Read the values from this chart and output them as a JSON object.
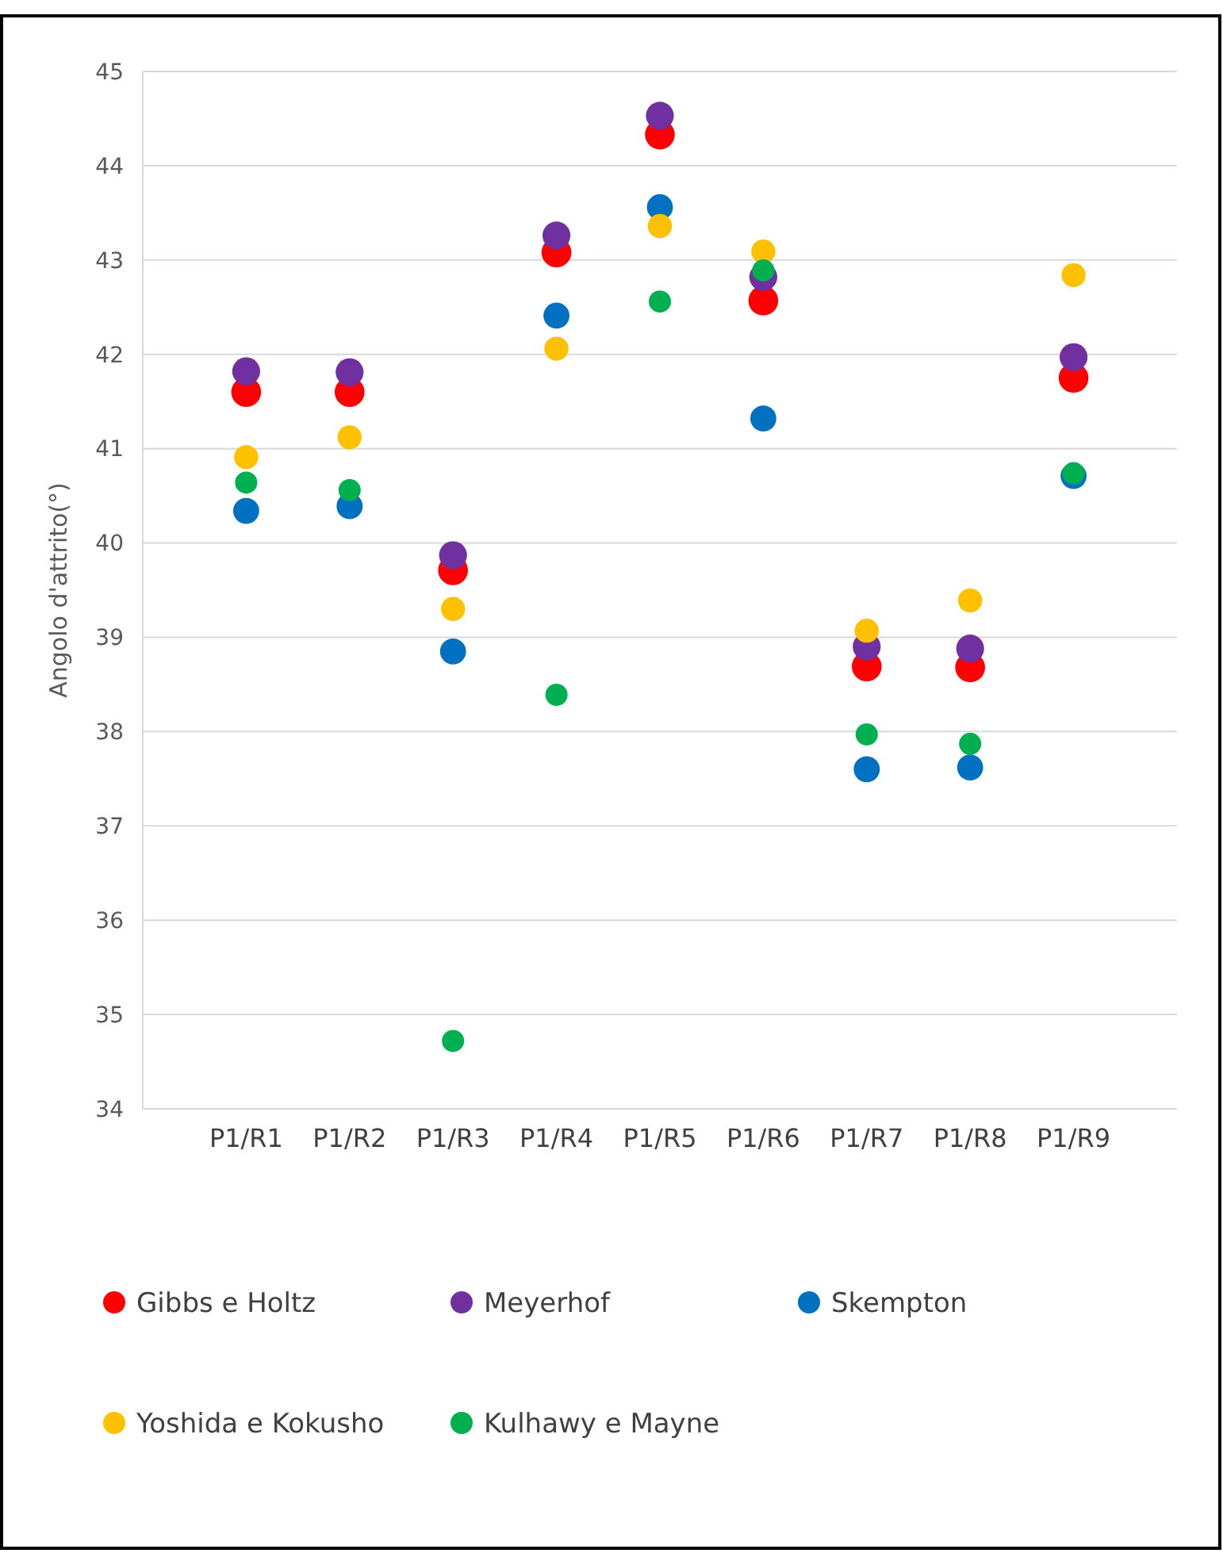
{
  "chart_data": {
    "type": "scatter",
    "ylabel": "Angolo d'attrito(°)",
    "categories": [
      "P1/R1",
      "P1/R2",
      "P1/R3",
      "P1/R4",
      "P1/R5",
      "P1/R6",
      "P1/R7",
      "P1/R8",
      "P1/R9"
    ],
    "ylim": [
      34,
      45
    ],
    "yticks": [
      34,
      35,
      36,
      37,
      38,
      39,
      40,
      41,
      42,
      43,
      44,
      45
    ],
    "grid": "y",
    "legend": "bottom",
    "marker": "circle",
    "series": [
      {
        "name": "Gibbs e Holtz",
        "color": "#ff0000",
        "values": [
          41.6,
          41.6,
          39.71,
          43.08,
          44.33,
          42.57,
          38.69,
          38.68,
          41.75
        ]
      },
      {
        "name": "Meyerhof",
        "color": "#7030a0",
        "values": [
          41.82,
          41.81,
          39.87,
          43.26,
          44.53,
          42.82,
          38.9,
          38.88,
          41.97
        ]
      },
      {
        "name": "Skempton",
        "color": "#0070c0",
        "values": [
          40.34,
          40.39,
          38.85,
          42.41,
          43.56,
          41.32,
          37.6,
          37.62,
          40.71
        ]
      },
      {
        "name": "Yoshida e Kokusho",
        "color": "#ffc000",
        "values": [
          40.91,
          41.12,
          39.3,
          42.06,
          43.36,
          43.09,
          39.07,
          39.39,
          42.84
        ]
      },
      {
        "name": "Kulhawy e Mayne",
        "color": "#00b050",
        "values": [
          40.64,
          40.56,
          34.72,
          38.39,
          42.56,
          42.89,
          37.97,
          37.87,
          40.74
        ]
      }
    ]
  }
}
